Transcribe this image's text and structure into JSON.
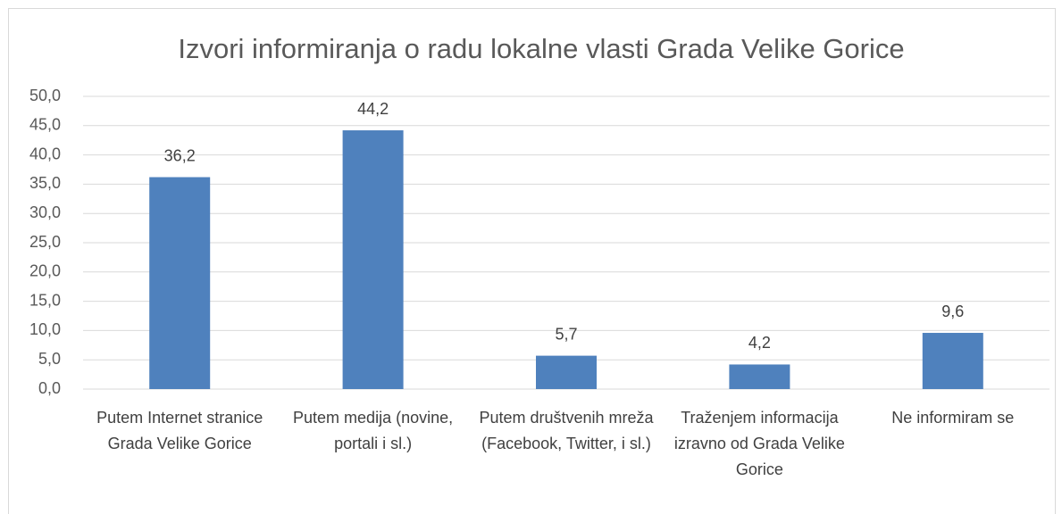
{
  "chart_data": {
    "type": "bar",
    "title": "Izvori informiranja o radu lokalne vlasti Grada Velike Gorice",
    "categories": [
      "Putem Internet stranice Grada Velike Gorice",
      "Putem medija (novine, portali i sl.)",
      "Putem društvenih mreža (Facebook, Twitter, i sl.)",
      "Traženjem informacija izravno od Grada Velike Gorice",
      "Ne informiram se"
    ],
    "values": [
      36.2,
      44.2,
      5.7,
      4.2,
      9.6
    ],
    "value_labels": [
      "36,2",
      "44,2",
      "5,7",
      "4,2",
      "9,6"
    ],
    "color": "#4f81bd",
    "ylim": [
      0,
      50
    ],
    "yticks": [
      {
        "value": 0,
        "label": "0,0"
      },
      {
        "value": 5,
        "label": "5,0"
      },
      {
        "value": 10,
        "label": "10,0"
      },
      {
        "value": 15,
        "label": "15,0"
      },
      {
        "value": 20,
        "label": "20,0"
      },
      {
        "value": 25,
        "label": "25,0"
      },
      {
        "value": 30,
        "label": "30,0"
      },
      {
        "value": 35,
        "label": "35,0"
      },
      {
        "value": 40,
        "label": "40,0"
      },
      {
        "value": 45,
        "label": "45,0"
      },
      {
        "value": 50,
        "label": "50,0"
      }
    ],
    "grid": true
  }
}
